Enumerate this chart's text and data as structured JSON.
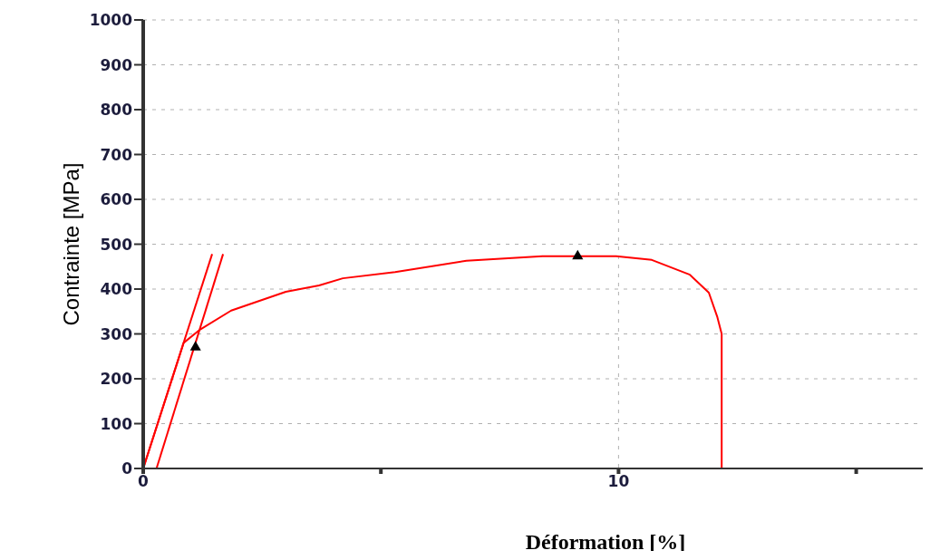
{
  "chart_data": {
    "type": "line",
    "xlabel": "Déformation [%]",
    "ylabel": "Contrainte [MPa]",
    "xlim": [
      0,
      16.4
    ],
    "xticks": [
      0,
      {
        "value": 5,
        "label": null
      },
      10,
      {
        "value": 15,
        "label": null
      }
    ],
    "ylim": [
      0,
      1000
    ],
    "yticks": [
      0,
      100,
      200,
      300,
      400,
      500,
      600,
      700,
      800,
      900,
      1000
    ],
    "grid": true,
    "marker": "none",
    "line_style": "solid",
    "series": [
      {
        "color": "#ff0000",
        "x": [
          0,
          0.85,
          1.2,
          1.85,
          3.0,
          3.7,
          4.2,
          5.3,
          6.8,
          8.4,
          9.95,
          10.7,
          11.5,
          11.9,
          12.08,
          12.17,
          12.17
        ],
        "values": [
          0,
          280,
          310,
          352,
          394,
          408,
          424,
          438,
          463,
          473,
          473,
          465,
          432,
          392,
          337,
          300,
          0
        ]
      },
      {
        "color": "#ff0000",
        "x": [
          0,
          1.45
        ],
        "values": [
          0,
          478
        ]
      },
      {
        "color": "#ff0000",
        "x": [
          0.28,
          1.68
        ],
        "values": [
          0,
          478
        ]
      },
      {
        "type": "scatter",
        "marker": "triangle",
        "color": "#000000",
        "x": [
          1.1,
          9.14
        ],
        "values": [
          270,
          473
        ]
      }
    ]
  }
}
